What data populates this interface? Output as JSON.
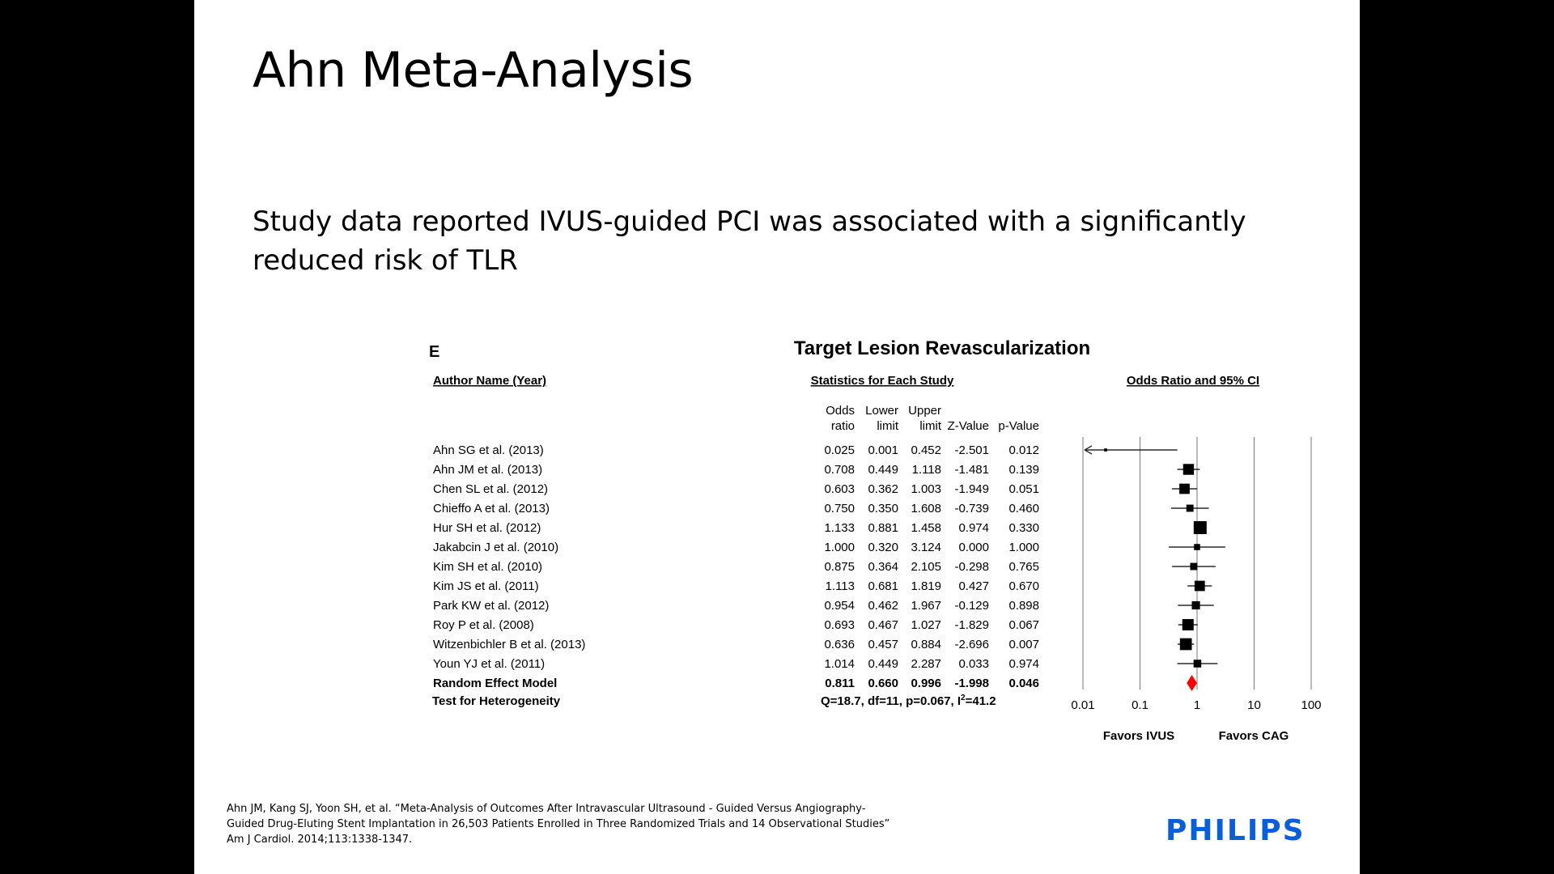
{
  "slide": {
    "title": "Ahn Meta-Analysis",
    "body": "Study data reported IVUS-guided PCI was associated with a significantly reduced risk of TLR",
    "reference": [
      "Ahn JM, Kang SJ, Yoon SH, et al. “Meta-Analysis of Outcomes After Intravascular Ultrasound  - Guided Versus Angiography-",
      "Guided Drug-Eluting Stent Implantation in 26,503 Patients Enrolled in Three Randomized Trials and 14 Observational Studies”",
      "Am J Cardiol. 2014;113:1338-1347."
    ],
    "logo": "PHILIPS",
    "logo_color": "#0b5ed7"
  },
  "chart_data": {
    "type": "forest",
    "panel_label": "E",
    "title": "Target Lesion Revascularization",
    "headers": {
      "author": "Author Name (Year)",
      "stats": "Statistics for Each Study",
      "plot": "Odds Ratio and 95% CI",
      "columns": [
        [
          "Odds",
          "ratio"
        ],
        [
          "Lower",
          "limit"
        ],
        [
          "Upper",
          "limit"
        ],
        [
          "",
          "Z-Value"
        ],
        [
          "",
          "p-Value"
        ]
      ]
    },
    "studies": [
      {
        "name": "Ahn SG et al. (2013)",
        "or": "0.025",
        "lower": "0.001",
        "upper": "0.452",
        "z": "-2.501",
        "p": "0.012",
        "weight": 0.05
      },
      {
        "name": "Ahn JM et al. (2013)",
        "or": "0.708",
        "lower": "0.449",
        "upper": "1.118",
        "z": "-1.481",
        "p": "0.139",
        "weight": 0.8
      },
      {
        "name": "Chen SL et al. (2012)",
        "or": "0.603",
        "lower": "0.362",
        "upper": "1.003",
        "z": "-1.949",
        "p": "0.051",
        "weight": 0.75
      },
      {
        "name": "Chieffo A et al. (2013)",
        "or": "0.750",
        "lower": "0.350",
        "upper": "1.608",
        "z": "-0.739",
        "p": "0.460",
        "weight": 0.45
      },
      {
        "name": "Hur SH et al. (2012)",
        "or": "1.133",
        "lower": "0.881",
        "upper": "1.458",
        "z": "0.974",
        "p": "0.330",
        "weight": 1.0
      },
      {
        "name": "Jakabcin J et al. (2010)",
        "or": "1.000",
        "lower": "0.320",
        "upper": "3.124",
        "z": "0.000",
        "p": "1.000",
        "weight": 0.35
      },
      {
        "name": "Kim SH et al. (2010)",
        "or": "0.875",
        "lower": "0.364",
        "upper": "2.105",
        "z": "-0.298",
        "p": "0.765",
        "weight": 0.45
      },
      {
        "name": "Kim JS et al. (2011)",
        "or": "1.113",
        "lower": "0.681",
        "upper": "1.819",
        "z": "0.427",
        "p": "0.670",
        "weight": 0.75
      },
      {
        "name": "Park KW et al. (2012)",
        "or": "0.954",
        "lower": "0.462",
        "upper": "1.967",
        "z": "-0.129",
        "p": "0.898",
        "weight": 0.55
      },
      {
        "name": "Roy P et al. (2008)",
        "or": "0.693",
        "lower": "0.467",
        "upper": "1.027",
        "z": "-1.829",
        "p": "0.067",
        "weight": 0.85
      },
      {
        "name": "Witzenbichler B et al. (2013)",
        "or": "0.636",
        "lower": "0.457",
        "upper": "0.884",
        "z": "-2.696",
        "p": "0.007",
        "weight": 0.9
      },
      {
        "name": "Youn YJ et al. (2011)",
        "or": "1.014",
        "lower": "0.449",
        "upper": "2.287",
        "z": "0.033",
        "p": "0.974",
        "weight": 0.5
      }
    ],
    "summary": {
      "name": "Random Effect Model",
      "or": "0.811",
      "lower": "0.660",
      "upper": "0.996",
      "z": "-1.998",
      "p": "0.046",
      "color": "#ff0000"
    },
    "heterogeneity": {
      "label": "Test for Heterogeneity",
      "text_prefix": "Q=18.7,  df=11,  p=0.067,  I",
      "sup": "2",
      "text_suffix": "=41.2"
    },
    "x_axis": {
      "scale": "log",
      "ticks": [
        0.01,
        0.1,
        1,
        10,
        100
      ],
      "tick_labels": [
        "0.01",
        "0.1",
        "1",
        "10",
        "100"
      ],
      "xlim": [
        0.01,
        100
      ]
    },
    "favors": {
      "left": "Favors IVUS",
      "right": "Favors CAG"
    }
  }
}
